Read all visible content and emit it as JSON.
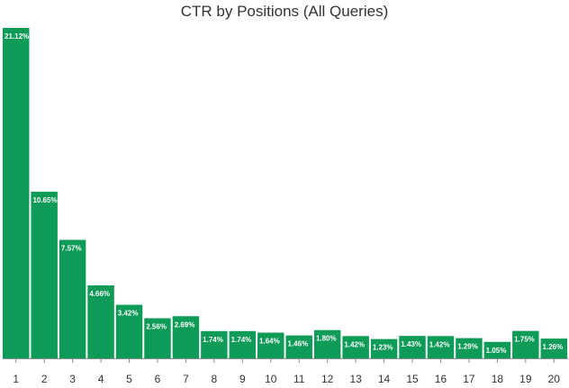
{
  "chart_data": {
    "type": "bar",
    "title": "CTR by Positions (All Queries)",
    "xlabel": "",
    "ylabel": "",
    "categories": [
      "1",
      "2",
      "3",
      "4",
      "5",
      "6",
      "7",
      "8",
      "9",
      "10",
      "11",
      "12",
      "13",
      "14",
      "15",
      "16",
      "17",
      "18",
      "19",
      "20"
    ],
    "values": [
      21.12,
      10.65,
      7.57,
      4.66,
      3.42,
      2.56,
      2.69,
      1.74,
      1.74,
      1.64,
      1.46,
      1.8,
      1.42,
      1.23,
      1.43,
      1.42,
      1.29,
      1.05,
      1.75,
      1.26
    ],
    "value_labels": [
      "21.12%",
      "10.65%",
      "7.57%",
      "4.66%",
      "3.42%",
      "2.56%",
      "2.69%",
      "1.74%",
      "1.74%",
      "1.64%",
      "1.46%",
      "1.80%",
      "1.42%",
      "1.23%",
      "1.43%",
      "1.42%",
      "1.29%",
      "1.05%",
      "1.75%",
      "1.26%"
    ],
    "ylim": [
      0,
      21.12
    ],
    "grid": false,
    "legend": "none",
    "bar_color": "#0e9a57",
    "axis_color": "#888888"
  }
}
